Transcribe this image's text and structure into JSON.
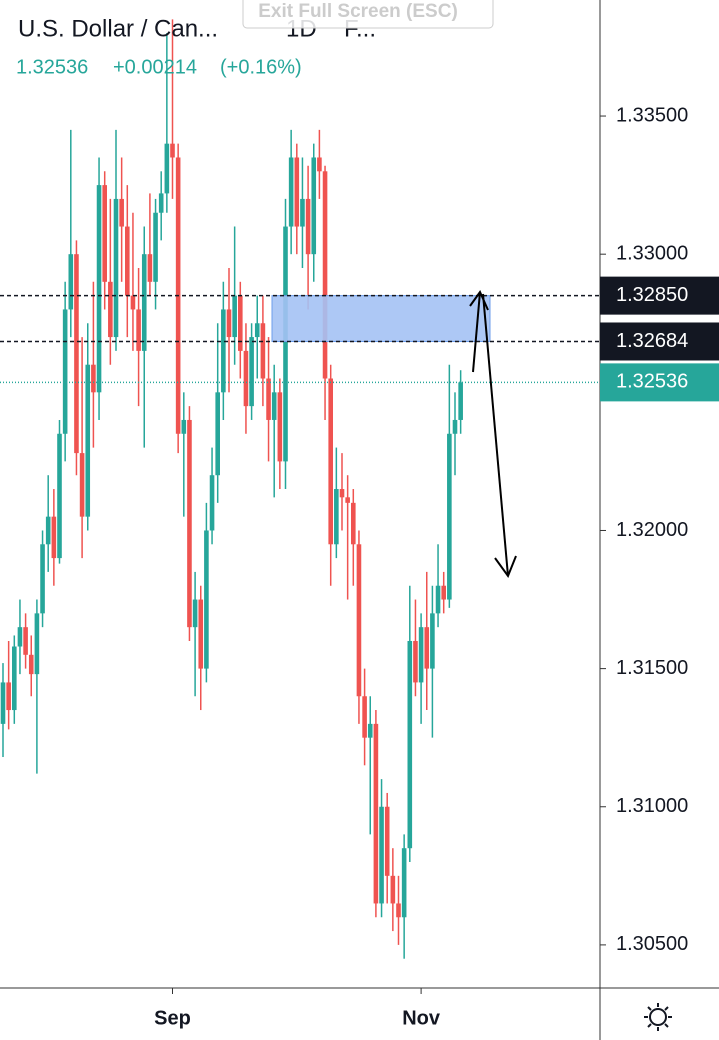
{
  "ui": {
    "exit_button": "Exit Full Screen (ESC)"
  },
  "chart_data": {
    "type": "candlestick",
    "title": "U.S. Dollar / Can...",
    "interval": "1D",
    "extra": "F...",
    "last_price": "1.32536",
    "change": "+0.00214",
    "change_pct": "(+0.16%)",
    "up_color": "#26a69a",
    "down_color": "#ef5350",
    "categories": [
      null,
      null,
      null,
      null,
      null,
      null,
      null,
      null,
      null,
      null,
      null,
      null,
      null,
      null,
      null,
      null,
      null,
      null,
      null,
      null,
      null,
      null,
      null,
      null,
      null,
      null,
      null,
      null,
      null,
      null,
      "Sep",
      null,
      null,
      null,
      null,
      null,
      null,
      null,
      null,
      null,
      null,
      null,
      null,
      null,
      null,
      null,
      null,
      null,
      null,
      null,
      null,
      null,
      null,
      null,
      null,
      null,
      null,
      null,
      null,
      null,
      null,
      null,
      null,
      null,
      null,
      null,
      null,
      null,
      null,
      null,
      null,
      null,
      null,
      null,
      "Nov",
      null,
      null,
      null,
      null,
      null,
      null,
      null
    ],
    "open": [
      1.313,
      1.3145,
      1.3135,
      1.3158,
      1.3165,
      1.3155,
      1.3148,
      1.317,
      1.3195,
      1.3205,
      1.319,
      1.3235,
      1.328,
      1.33,
      1.3228,
      1.3205,
      1.326,
      1.325,
      1.3325,
      1.329,
      1.327,
      1.332,
      1.331,
      1.3285,
      1.328,
      1.3265,
      1.33,
      1.329,
      1.3315,
      1.3322,
      1.334,
      1.3335,
      1.3235,
      1.324,
      1.3165,
      1.3175,
      1.315,
      1.32,
      1.322,
      1.325,
      1.328,
      1.327,
      1.3285,
      1.3265,
      1.3245,
      1.327,
      1.3275,
      1.3255,
      1.324,
      1.325,
      1.3225,
      1.331,
      1.3335,
      1.331,
      1.332,
      1.33,
      1.3335,
      1.333,
      1.3255,
      1.3195,
      1.3215,
      1.3212,
      1.321,
      1.3195,
      1.314,
      1.3125,
      1.313,
      1.3065,
      1.31,
      1.3075,
      1.3065,
      1.306,
      1.3085,
      1.316,
      1.3145,
      1.3165,
      1.315,
      1.317,
      1.318,
      1.3175,
      1.3235,
      1.324
    ],
    "high": [
      1.3152,
      1.316,
      1.3162,
      1.3175,
      1.317,
      1.3162,
      1.3175,
      1.32,
      1.322,
      1.3215,
      1.324,
      1.329,
      1.3345,
      1.3305,
      1.327,
      1.3275,
      1.329,
      1.3335,
      1.333,
      1.332,
      1.3345,
      1.3335,
      1.3325,
      1.3315,
      1.3295,
      1.331,
      1.3322,
      1.332,
      1.333,
      1.338,
      1.3385,
      1.334,
      1.325,
      1.3245,
      1.3185,
      1.318,
      1.321,
      1.323,
      1.3275,
      1.329,
      1.3295,
      1.331,
      1.329,
      1.3275,
      1.3275,
      1.3285,
      1.3285,
      1.327,
      1.326,
      1.3255,
      1.332,
      1.3345,
      1.334,
      1.3335,
      1.3332,
      1.334,
      1.3345,
      1.3332,
      1.326,
      1.323,
      1.3228,
      1.322,
      1.3215,
      1.32,
      1.315,
      1.314,
      1.3135,
      1.311,
      1.3105,
      1.3085,
      1.3075,
      1.309,
      1.318,
      1.3175,
      1.317,
      1.3185,
      1.318,
      1.3195,
      1.3185,
      1.326,
      1.325,
      1.3258
    ],
    "low": [
      1.3118,
      1.3128,
      1.313,
      1.3148,
      1.315,
      1.314,
      1.3112,
      1.3165,
      1.3185,
      1.318,
      1.3188,
      1.3225,
      1.327,
      1.322,
      1.319,
      1.32,
      1.323,
      1.324,
      1.328,
      1.326,
      1.3265,
      1.329,
      1.327,
      1.3265,
      1.3245,
      1.323,
      1.3285,
      1.328,
      1.3305,
      1.3315,
      1.332,
      1.3228,
      1.3205,
      1.316,
      1.314,
      1.3135,
      1.3145,
      1.3195,
      1.321,
      1.324,
      1.325,
      1.326,
      1.3255,
      1.3235,
      1.324,
      1.3255,
      1.3245,
      1.3225,
      1.3212,
      1.3215,
      1.3215,
      1.33,
      1.33,
      1.3295,
      1.328,
      1.329,
      1.332,
      1.324,
      1.318,
      1.319,
      1.32,
      1.3175,
      1.318,
      1.313,
      1.3115,
      1.309,
      1.306,
      1.306,
      1.3065,
      1.3055,
      1.305,
      1.3045,
      1.308,
      1.314,
      1.313,
      1.3135,
      1.3125,
      1.3165,
      1.317,
      1.3172,
      1.322,
      1.3235
    ],
    "close": [
      1.3145,
      1.3135,
      1.3158,
      1.3165,
      1.3155,
      1.3148,
      1.317,
      1.3195,
      1.3205,
      1.319,
      1.3235,
      1.328,
      1.33,
      1.3228,
      1.3205,
      1.326,
      1.325,
      1.3325,
      1.329,
      1.327,
      1.332,
      1.331,
      1.3285,
      1.328,
      1.3265,
      1.33,
      1.329,
      1.3315,
      1.3322,
      1.334,
      1.3335,
      1.3235,
      1.324,
      1.3165,
      1.3175,
      1.315,
      1.32,
      1.322,
      1.325,
      1.328,
      1.327,
      1.3285,
      1.3265,
      1.3245,
      1.327,
      1.3275,
      1.3255,
      1.324,
      1.325,
      1.3225,
      1.331,
      1.3335,
      1.331,
      1.332,
      1.33,
      1.3335,
      1.333,
      1.3255,
      1.3195,
      1.3215,
      1.3212,
      1.321,
      1.3195,
      1.314,
      1.3125,
      1.313,
      1.3065,
      1.31,
      1.3075,
      1.3065,
      1.306,
      1.3085,
      1.316,
      1.3145,
      1.3165,
      1.315,
      1.317,
      1.318,
      1.3175,
      1.3235,
      1.324,
      1.32536
    ],
    "ylim": [
      1.30344,
      1.3392
    ],
    "yticks": [
      {
        "value": 1.335,
        "label": "1.33500"
      },
      {
        "value": 1.33,
        "label": "1.33000"
      },
      {
        "value": 1.32,
        "label": "1.32000"
      },
      {
        "value": 1.315,
        "label": "1.31500"
      },
      {
        "value": 1.31,
        "label": "1.31000"
      },
      {
        "value": 1.305,
        "label": "1.30500"
      }
    ],
    "levels": [
      {
        "value": 1.3285,
        "label": "1.32850",
        "color": "#131722"
      },
      {
        "value": 1.32684,
        "label": "1.32684",
        "color": "#131722"
      }
    ],
    "current": {
      "value": 1.32536,
      "label": "1.32536",
      "color": "#26a69a"
    },
    "zone_color": "#a4c2f4"
  }
}
